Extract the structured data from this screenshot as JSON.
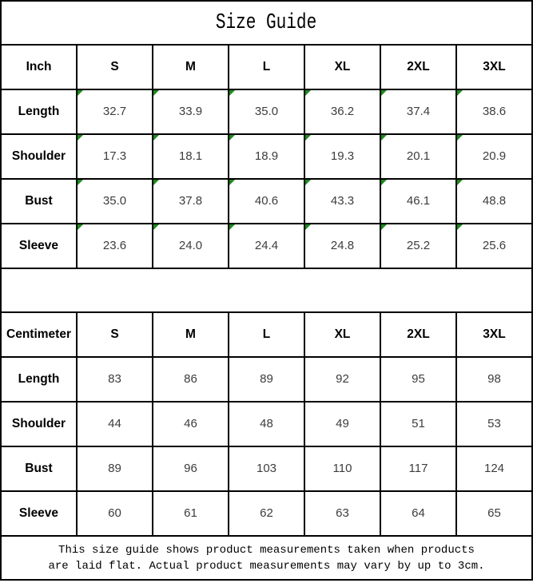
{
  "title": "Size Guide",
  "colors": {
    "border": "#000000",
    "flag_green": "#1e8a1e",
    "value_text": "#3d3d3d",
    "background": "#ffffff"
  },
  "chart_data": [
    {
      "type": "table",
      "unit": "Inch",
      "columns": [
        "Inch",
        "S",
        "M",
        "L",
        "XL",
        "2XL",
        "3XL"
      ],
      "rows": [
        {
          "label": "Length",
          "values": [
            "32.7",
            "33.9",
            "35.0",
            "36.2",
            "37.4",
            "38.6"
          ]
        },
        {
          "label": "Shoulder",
          "values": [
            "17.3",
            "18.1",
            "18.9",
            "19.3",
            "20.1",
            "20.9"
          ]
        },
        {
          "label": "Bust",
          "values": [
            "35.0",
            "37.8",
            "40.6",
            "43.3",
            "46.1",
            "48.8"
          ]
        },
        {
          "label": "Sleeve",
          "values": [
            "23.6",
            "24.0",
            "24.4",
            "24.8",
            "25.2",
            "25.6"
          ]
        }
      ],
      "cell_decoration": "green triangle flag in top-left corner of every value cell"
    },
    {
      "type": "table",
      "unit": "Centimeter",
      "columns": [
        "Centimeter",
        "S",
        "M",
        "L",
        "XL",
        "2XL",
        "3XL"
      ],
      "rows": [
        {
          "label": "Length",
          "values": [
            "83",
            "86",
            "89",
            "92",
            "95",
            "98"
          ]
        },
        {
          "label": "Shoulder",
          "values": [
            "44",
            "46",
            "48",
            "49",
            "51",
            "53"
          ]
        },
        {
          "label": "Bust",
          "values": [
            "89",
            "96",
            "103",
            "110",
            "117",
            "124"
          ]
        },
        {
          "label": "Sleeve",
          "values": [
            "60",
            "61",
            "62",
            "63",
            "64",
            "65"
          ]
        }
      ],
      "cell_decoration": "none"
    }
  ],
  "footer": {
    "line1": "This size guide shows product measurements taken when products",
    "line2": "are laid flat. Actual product measurements may vary by up to 3cm."
  }
}
